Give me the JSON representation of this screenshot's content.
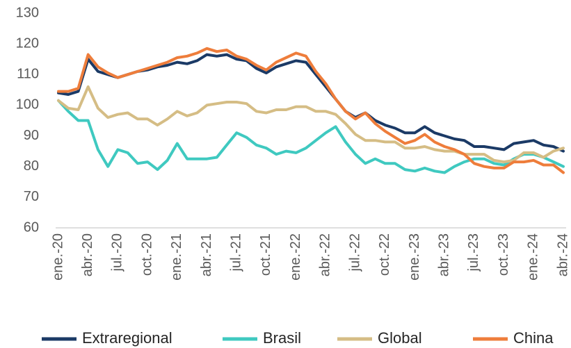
{
  "chart_data": {
    "type": "line",
    "categories": [
      "ene.-20",
      null,
      null,
      "abr.-20",
      null,
      null,
      "jul.-20",
      null,
      null,
      "oct.-20",
      null,
      null,
      "ene.-21",
      null,
      null,
      "abr.-21",
      null,
      null,
      "jul.-21",
      null,
      null,
      "oct.-21",
      null,
      null,
      "ene.-22",
      null,
      null,
      "abr.-22",
      null,
      null,
      "jul.-22",
      null,
      null,
      "oct.-22",
      null,
      null,
      "ene.-23",
      null,
      null,
      "abr.-23",
      null,
      null,
      "jul.-23",
      null,
      null,
      "oct.-23",
      null,
      null,
      "ene.-24",
      null,
      null,
      "abr.-24"
    ],
    "series": [
      {
        "name": "Extraregional",
        "color": "#1b3a66",
        "values": [
          104,
          103.5,
          104.5,
          115,
          111,
          110,
          109,
          110,
          111,
          111.5,
          112.5,
          113,
          114,
          113.5,
          114.5,
          116.5,
          116,
          116.5,
          115,
          114.5,
          112,
          110.5,
          112.5,
          113.5,
          114.5,
          114,
          110,
          106,
          102,
          98,
          96,
          97.5,
          95,
          93.5,
          92.5,
          91,
          91,
          93,
          91,
          90,
          89,
          88.5,
          86.5,
          86.5,
          86,
          85.5,
          87.5,
          88,
          88.5,
          87,
          86.5,
          85
        ]
      },
      {
        "name": "Brasil",
        "color": "#3fc9c0",
        "values": [
          101.5,
          98,
          95,
          95,
          85.5,
          80,
          85.5,
          84.5,
          81,
          81.5,
          79,
          82,
          87.5,
          82.5,
          82.5,
          82.5,
          83,
          87,
          91,
          89.5,
          87,
          86,
          84,
          85,
          84.5,
          86,
          88.5,
          91,
          93,
          88,
          84,
          81,
          82.5,
          81,
          81,
          79,
          78.5,
          79.5,
          78.5,
          78,
          80,
          81.5,
          82.5,
          82.5,
          81,
          80.5,
          82.5,
          84,
          84,
          83,
          81.5,
          80
        ]
      },
      {
        "name": "Global",
        "color": "#d5bd85",
        "values": [
          101.5,
          99,
          98.5,
          106,
          99,
          96,
          97,
          97.5,
          95.5,
          95.5,
          93.5,
          95.5,
          98,
          96.5,
          97.5,
          100,
          100.5,
          101,
          101,
          100.5,
          98,
          97.5,
          98.5,
          98.5,
          99.5,
          99.5,
          98,
          98,
          97,
          94,
          90.5,
          88.5,
          88.5,
          88,
          88,
          86,
          86,
          86.5,
          85.5,
          85,
          85,
          84,
          84,
          84,
          82,
          81.5,
          82,
          84.5,
          84.5,
          83,
          85,
          86
        ]
      },
      {
        "name": "China",
        "color": "#ee7d3b",
        "values": [
          104.5,
          104.5,
          105.5,
          116.5,
          112.5,
          110.5,
          109,
          110,
          111,
          112,
          113,
          114,
          115.5,
          116,
          117,
          118.5,
          117.5,
          118,
          116,
          115,
          113,
          111.5,
          114,
          115.5,
          117,
          116,
          111,
          107,
          102,
          98,
          95.5,
          97.5,
          94,
          91.5,
          89.5,
          87.5,
          88.5,
          90.5,
          88,
          86.5,
          85.5,
          84,
          81,
          80,
          79.5,
          79.5,
          81.5,
          81.5,
          82,
          80.5,
          80.5,
          78
        ]
      }
    ],
    "ylim": [
      60,
      130
    ],
    "yticks": [
      60,
      70,
      80,
      90,
      100,
      110,
      120,
      130
    ],
    "grid": false,
    "legend": "bottom"
  }
}
